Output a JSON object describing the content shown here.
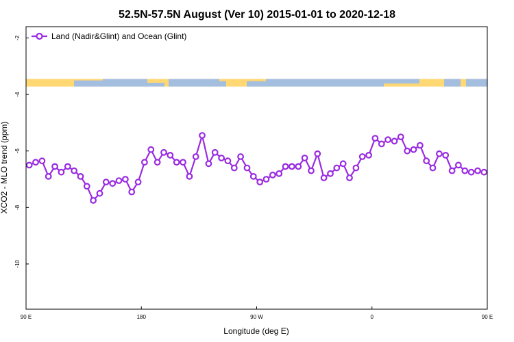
{
  "chart_data": {
    "type": "line",
    "title": "52.5N-57.5N August (Ver 10)   2015-01-01 to 2020-12-18",
    "xlabel": "Longitude (deg E)",
    "ylabel": "XCO2 - MLO trend (ppm)",
    "xlim": [
      90,
      450
    ],
    "ylim": [
      -11.6,
      -1.6
    ],
    "x_ticks": [
      {
        "value": 90,
        "label": "90 E"
      },
      {
        "value": 180,
        "label": "180"
      },
      {
        "value": 270,
        "label": "90 W"
      },
      {
        "value": 360,
        "label": "0"
      },
      {
        "value": 450,
        "label": "90 E"
      },
      {
        "value": 540,
        "label": "180"
      }
    ],
    "y_ticks": [
      {
        "value": -2,
        "label": "-2"
      },
      {
        "value": -4,
        "label": "-4"
      },
      {
        "value": -6,
        "label": "-6"
      },
      {
        "value": -8,
        "label": "-8"
      },
      {
        "value": -10,
        "label": "-10"
      }
    ],
    "legend": {
      "position": "top-left"
    },
    "series": [
      {
        "name": "Land (Nadir&Glint) and Ocean (Glint)",
        "color": "#9a2be2",
        "x": [
          92.5,
          97.5,
          102.5,
          107.5,
          112.5,
          117.5,
          122.5,
          127.5,
          132.5,
          137.5,
          142.5,
          147.5,
          152.5,
          157.5,
          162.5,
          167.5,
          172.5,
          177.5,
          182.5,
          187.5,
          192.5,
          197.5,
          202.5,
          207.5,
          212.5,
          217.5,
          222.5,
          227.5,
          232.5,
          237.5,
          242.5,
          247.5,
          252.5,
          257.5,
          262.5,
          267.5,
          272.5,
          277.5,
          282.5,
          287.5,
          292.5,
          297.5,
          302.5,
          307.5,
          312.5,
          317.5,
          322.5,
          327.5,
          332.5,
          337.5,
          342.5,
          347.5,
          352.5,
          357.5,
          362.5,
          367.5,
          372.5,
          377.5,
          382.5,
          387.5,
          392.5,
          397.5,
          402.5,
          407.5,
          412.5,
          417.5,
          422.5,
          427.5,
          432.5,
          437.5,
          442.5,
          447.5
        ],
        "values": [
          -6.5,
          -6.4,
          -6.35,
          -6.9,
          -6.55,
          -6.75,
          -6.55,
          -6.7,
          -6.9,
          -7.25,
          -7.75,
          -7.5,
          -7.1,
          -7.15,
          -7.05,
          -7.0,
          -7.45,
          -7.1,
          -6.4,
          -5.95,
          -6.4,
          -6.05,
          -6.15,
          -6.4,
          -6.4,
          -6.9,
          -6.2,
          -5.45,
          -6.45,
          -6.05,
          -6.25,
          -6.35,
          -6.6,
          -6.2,
          -6.6,
          -6.9,
          -7.1,
          -7.0,
          -6.85,
          -6.8,
          -6.55,
          -6.55,
          -6.55,
          -6.25,
          -6.7,
          -6.1,
          -6.95,
          -6.8,
          -6.6,
          -6.45,
          -6.95,
          -6.6,
          -6.2,
          -6.15,
          -5.55,
          -5.75,
          -5.6,
          -5.65,
          -5.5,
          -6.0,
          -5.95,
          -5.8,
          -6.35,
          -6.6,
          -6.1,
          -6.15,
          -6.7,
          -6.5,
          -6.7,
          -6.75,
          -6.7,
          -6.75
        ]
      }
    ],
    "map_band": {
      "y_range": [
        -3.72,
        -3.45
      ],
      "land_color": "#ffd773",
      "ocean_color": "#a4bedf"
    }
  }
}
